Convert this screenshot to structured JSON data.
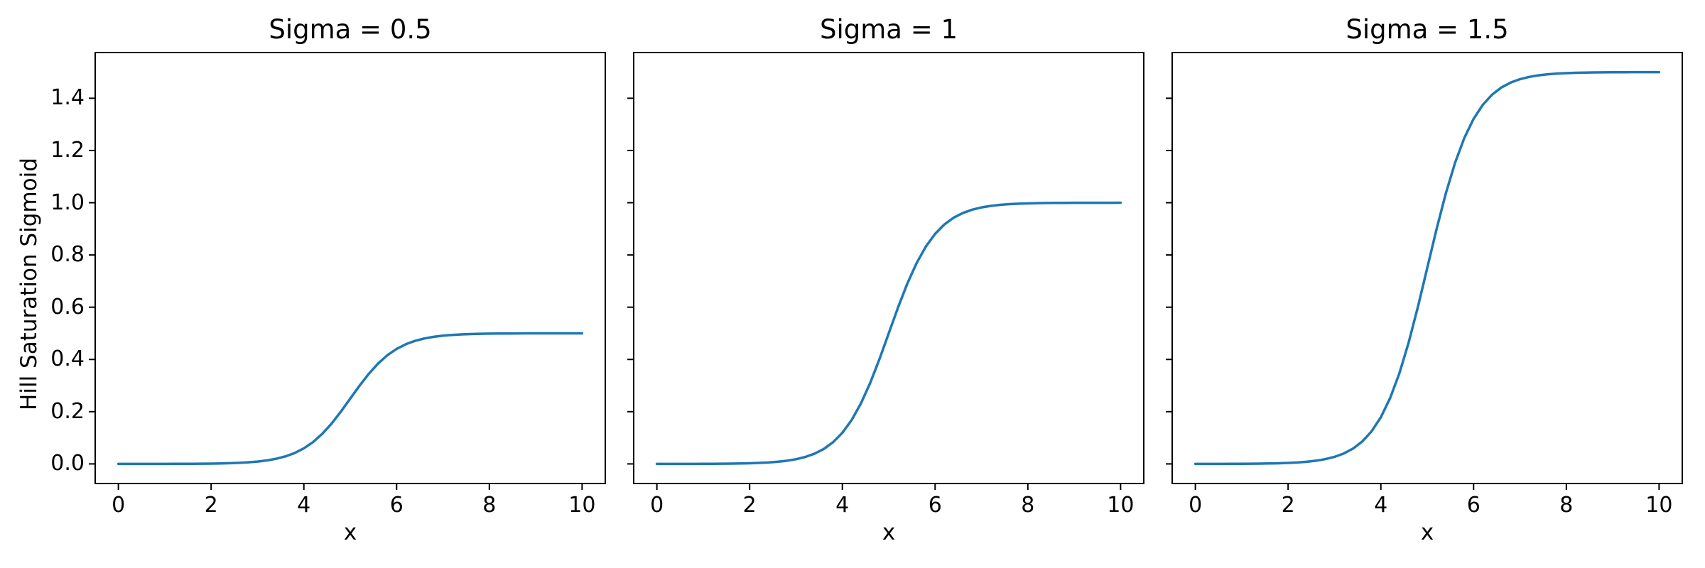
{
  "figure": {
    "background": "#ffffff",
    "text_color": "#000000",
    "spine_color": "#000000"
  },
  "chart_data": [
    {
      "type": "line",
      "title": "Sigma = 0.5",
      "xlabel": "x",
      "ylabel": "Hill Saturation Sigmoid",
      "xlim": [
        -0.5,
        10.5
      ],
      "ylim": [
        -0.075,
        1.575
      ],
      "grid": false,
      "legend": null,
      "xticks": [
        0,
        2,
        4,
        6,
        8,
        10
      ],
      "xtick_labels": [
        "0",
        "2",
        "4",
        "6",
        "8",
        "10"
      ],
      "yticks": [
        0.0,
        0.2,
        0.4,
        0.6,
        0.8,
        1.0,
        1.2,
        1.4
      ],
      "ytick_labels": [
        "0.0",
        "0.2",
        "0.4",
        "0.6",
        "0.8",
        "1.0",
        "1.2",
        "1.4"
      ],
      "ytick_labels_visible": true,
      "x": [
        0.0,
        0.2,
        0.4,
        0.6,
        0.8,
        1.0,
        1.2,
        1.4,
        1.6,
        1.8,
        2.0,
        2.2,
        2.4,
        2.6,
        2.8,
        3.0,
        3.2,
        3.4,
        3.6,
        3.8,
        4.0,
        4.2,
        4.4,
        4.6,
        4.8,
        5.0,
        5.2,
        5.4,
        5.6,
        5.8,
        6.0,
        6.2,
        6.4,
        6.6,
        6.8,
        7.0,
        7.2,
        7.4,
        7.6,
        7.8,
        8.0,
        8.2,
        8.4,
        8.6,
        8.8,
        9.0,
        9.2,
        9.4,
        9.6,
        9.8,
        10.0
      ],
      "series": [
        {
          "name": "sigma = 0.5",
          "color": "#1f77b4",
          "values": [
            0.0,
            0.0,
            0.0001,
            0.0001,
            0.0001,
            0.0002,
            0.0003,
            0.0004,
            0.0006,
            0.0008,
            0.0012,
            0.0018,
            0.0027,
            0.0041,
            0.0061,
            0.009,
            0.0133,
            0.0196,
            0.0287,
            0.0416,
            0.0596,
            0.084,
            0.1157,
            0.155,
            0.2007,
            0.25,
            0.2993,
            0.345,
            0.3843,
            0.416,
            0.4404,
            0.4584,
            0.4713,
            0.4804,
            0.4867,
            0.491,
            0.4939,
            0.4959,
            0.4973,
            0.4982,
            0.4988,
            0.4992,
            0.4994,
            0.4996,
            0.4998,
            0.4998,
            0.4999,
            0.4999,
            0.4999,
            0.5,
            0.5
          ]
        }
      ]
    },
    {
      "type": "line",
      "title": "Sigma = 1",
      "xlabel": "x",
      "ylabel": "",
      "xlim": [
        -0.5,
        10.5
      ],
      "ylim": [
        -0.075,
        1.575
      ],
      "grid": false,
      "legend": null,
      "xticks": [
        0,
        2,
        4,
        6,
        8,
        10
      ],
      "xtick_labels": [
        "0",
        "2",
        "4",
        "6",
        "8",
        "10"
      ],
      "yticks": [
        0.0,
        0.2,
        0.4,
        0.6,
        0.8,
        1.0,
        1.2,
        1.4
      ],
      "ytick_labels": [],
      "ytick_labels_visible": false,
      "x": [
        0.0,
        0.2,
        0.4,
        0.6,
        0.8,
        1.0,
        1.2,
        1.4,
        1.6,
        1.8,
        2.0,
        2.2,
        2.4,
        2.6,
        2.8,
        3.0,
        3.2,
        3.4,
        3.6,
        3.8,
        4.0,
        4.2,
        4.4,
        4.6,
        4.8,
        5.0,
        5.2,
        5.4,
        5.6,
        5.8,
        6.0,
        6.2,
        6.4,
        6.6,
        6.8,
        7.0,
        7.2,
        7.4,
        7.6,
        7.8,
        8.0,
        8.2,
        8.4,
        8.6,
        8.8,
        9.0,
        9.2,
        9.4,
        9.6,
        9.8,
        10.0
      ],
      "series": [
        {
          "name": "sigma = 1",
          "color": "#1f77b4",
          "values": [
            0.0,
            0.0001,
            0.0001,
            0.0002,
            0.0002,
            0.0003,
            0.0005,
            0.0007,
            0.0011,
            0.0017,
            0.0025,
            0.0037,
            0.0055,
            0.0082,
            0.0121,
            0.018,
            0.0266,
            0.0392,
            0.0573,
            0.0832,
            0.1192,
            0.168,
            0.2315,
            0.31,
            0.4013,
            0.5,
            0.5987,
            0.69,
            0.7685,
            0.832,
            0.8808,
            0.9168,
            0.9427,
            0.9608,
            0.9734,
            0.982,
            0.9879,
            0.9918,
            0.9945,
            0.9963,
            0.9975,
            0.9983,
            0.9989,
            0.9993,
            0.9995,
            0.9997,
            0.9998,
            0.9998,
            0.9999,
            0.9999,
            1.0
          ]
        }
      ]
    },
    {
      "type": "line",
      "title": "Sigma = 1.5",
      "xlabel": "x",
      "ylabel": "",
      "xlim": [
        -0.5,
        10.5
      ],
      "ylim": [
        -0.075,
        1.575
      ],
      "grid": false,
      "legend": null,
      "xticks": [
        0,
        2,
        4,
        6,
        8,
        10
      ],
      "xtick_labels": [
        "0",
        "2",
        "4",
        "6",
        "8",
        "10"
      ],
      "yticks": [
        0.0,
        0.2,
        0.4,
        0.6,
        0.8,
        1.0,
        1.2,
        1.4
      ],
      "ytick_labels": [],
      "ytick_labels_visible": false,
      "x": [
        0.0,
        0.2,
        0.4,
        0.6,
        0.8,
        1.0,
        1.2,
        1.4,
        1.6,
        1.8,
        2.0,
        2.2,
        2.4,
        2.6,
        2.8,
        3.0,
        3.2,
        3.4,
        3.6,
        3.8,
        4.0,
        4.2,
        4.4,
        4.6,
        4.8,
        5.0,
        5.2,
        5.4,
        5.6,
        5.8,
        6.0,
        6.2,
        6.4,
        6.6,
        6.8,
        7.0,
        7.2,
        7.4,
        7.6,
        7.8,
        8.0,
        8.2,
        8.4,
        8.6,
        8.8,
        9.0,
        9.2,
        9.4,
        9.6,
        9.8,
        10.0
      ],
      "series": [
        {
          "name": "sigma = 1.5",
          "color": "#1f77b4",
          "values": [
            0.0001,
            0.0001,
            0.0002,
            0.0002,
            0.0003,
            0.0005,
            0.0008,
            0.0011,
            0.0017,
            0.0025,
            0.0037,
            0.0055,
            0.0082,
            0.0122,
            0.0182,
            0.027,
            0.0399,
            0.0587,
            0.086,
            0.1248,
            0.1788,
            0.252,
            0.3472,
            0.465,
            0.602,
            0.75,
            0.898,
            1.035,
            1.1528,
            1.248,
            1.3212,
            1.3752,
            1.414,
            1.4413,
            1.4601,
            1.473,
            1.4818,
            1.4878,
            1.4918,
            1.4945,
            1.4963,
            1.4975,
            1.4983,
            1.4989,
            1.4993,
            1.4995,
            1.4997,
            1.4998,
            1.4998,
            1.4999,
            1.4999
          ]
        }
      ]
    }
  ]
}
